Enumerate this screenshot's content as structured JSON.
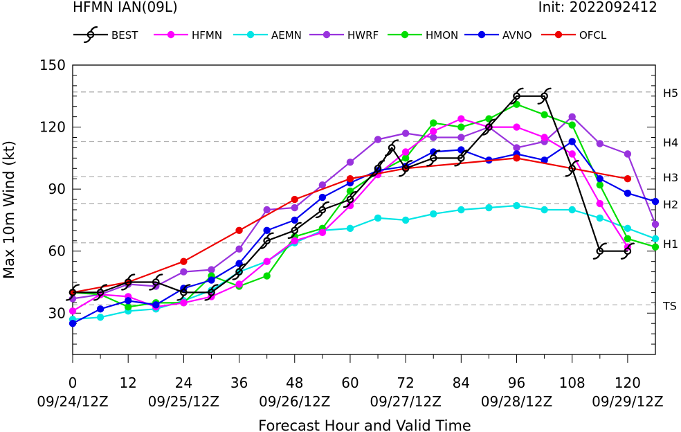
{
  "header": {
    "title": "HFMN IAN(09L)",
    "init": "Init: 2022092412"
  },
  "chart_data": {
    "type": "line",
    "xlabel": "Forecast Hour and Valid Time",
    "ylabel": "Max 10m Wind (kt)",
    "xlim": [
      0,
      126
    ],
    "ylim": [
      10,
      150
    ],
    "xticks": [
      0,
      12,
      24,
      36,
      48,
      60,
      72,
      84,
      96,
      108,
      120
    ],
    "date_ticks": [
      {
        "x": 0,
        "label": "09/24/12Z"
      },
      {
        "x": 24,
        "label": "09/25/12Z"
      },
      {
        "x": 48,
        "label": "09/26/12Z"
      },
      {
        "x": 72,
        "label": "09/27/12Z"
      },
      {
        "x": 96,
        "label": "09/28/12Z"
      },
      {
        "x": 120,
        "label": "09/29/12Z"
      }
    ],
    "yticks": [
      30,
      60,
      90,
      120,
      150
    ],
    "categories": [
      {
        "label": "TS",
        "value": 34
      },
      {
        "label": "H1",
        "value": 64
      },
      {
        "label": "H2",
        "value": 83
      },
      {
        "label": "H3",
        "value": 96
      },
      {
        "label": "H4",
        "value": 113
      },
      {
        "label": "H5",
        "value": 137
      }
    ],
    "legend_placement": "top",
    "series": [
      {
        "name": "BEST",
        "color": "#000000",
        "marker": "hurricane",
        "x": [
          0,
          6,
          12,
          18,
          24,
          30,
          36,
          42,
          48,
          54,
          60,
          66,
          69,
          72,
          78,
          84,
          90,
          96,
          102,
          108,
          114,
          120
        ],
        "y": [
          40,
          40,
          45,
          45,
          40,
          40,
          50,
          65,
          70,
          80,
          85,
          100,
          110,
          100,
          105,
          105,
          120,
          135,
          135,
          100,
          60,
          60
        ]
      },
      {
        "name": "HFMN",
        "color": "#ff00ff",
        "marker": "dot",
        "x": [
          0,
          6,
          12,
          18,
          24,
          30,
          36,
          42,
          48,
          54,
          60,
          66,
          72,
          78,
          84,
          90,
          96,
          102,
          108,
          114,
          120
        ],
        "y": [
          31,
          39,
          38,
          33,
          35,
          38,
          44,
          55,
          65,
          69,
          82,
          97,
          108,
          118,
          124,
          120,
          120,
          115,
          107,
          83,
          62
        ]
      },
      {
        "name": "AEMN",
        "color": "#00e5e5",
        "marker": "dot",
        "x": [
          0,
          6,
          12,
          18,
          24,
          30,
          36,
          42,
          48,
          54,
          60,
          66,
          72,
          78,
          84,
          90,
          96,
          102,
          108,
          114,
          120,
          126
        ],
        "y": [
          27,
          28,
          31,
          32,
          36,
          41,
          50,
          55,
          64,
          70,
          71,
          76,
          75,
          78,
          80,
          81,
          82,
          80,
          80,
          76,
          71,
          66
        ]
      },
      {
        "name": "HWRF",
        "color": "#9933dd",
        "marker": "dot",
        "x": [
          0,
          6,
          12,
          18,
          24,
          30,
          36,
          42,
          48,
          54,
          60,
          66,
          72,
          78,
          84,
          90,
          96,
          102,
          108,
          114,
          120,
          126
        ],
        "y": [
          37,
          39,
          44,
          43,
          50,
          51,
          61,
          80,
          81,
          92,
          103,
          114,
          117,
          115,
          115,
          120,
          110,
          113,
          125,
          112,
          107,
          73
        ]
      },
      {
        "name": "HMON",
        "color": "#00dd00",
        "marker": "dot",
        "x": [
          0,
          6,
          12,
          18,
          24,
          30,
          36,
          42,
          48,
          54,
          60,
          66,
          72,
          78,
          84,
          90,
          96,
          102,
          108,
          114,
          120,
          126
        ],
        "y": [
          40,
          39,
          33,
          35,
          35,
          48,
          43,
          48,
          67,
          71,
          89,
          98,
          105,
          122,
          120,
          124,
          131,
          126,
          121,
          92,
          66,
          62
        ]
      },
      {
        "name": "AVNO",
        "color": "#0000ee",
        "marker": "dot",
        "x": [
          0,
          6,
          12,
          18,
          24,
          30,
          36,
          42,
          48,
          54,
          60,
          66,
          72,
          78,
          84,
          90,
          96,
          102,
          108,
          114,
          120,
          126
        ],
        "y": [
          25,
          32,
          36,
          34,
          42,
          46,
          54,
          70,
          75,
          86,
          93,
          99,
          101,
          108,
          109,
          104,
          107,
          104,
          113,
          95,
          88,
          84
        ]
      },
      {
        "name": "OFCL",
        "color": "#ee0000",
        "marker": "dot",
        "x": [
          0,
          12,
          24,
          36,
          48,
          60,
          72,
          96,
          120
        ],
        "y": [
          40,
          45,
          55,
          70,
          85,
          95,
          100,
          105,
          95
        ]
      }
    ]
  }
}
